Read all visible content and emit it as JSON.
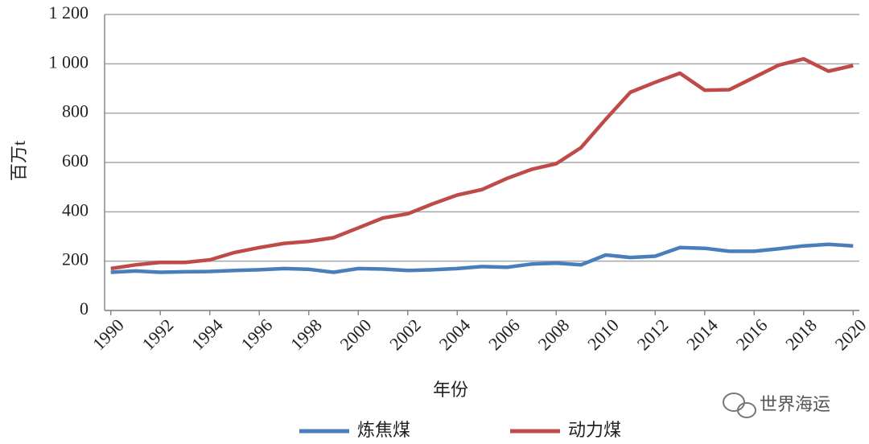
{
  "chart_data": {
    "type": "line",
    "x": [
      1990,
      1991,
      1992,
      1993,
      1994,
      1995,
      1996,
      1997,
      1998,
      1999,
      2000,
      2001,
      2002,
      2003,
      2004,
      2005,
      2006,
      2007,
      2008,
      2009,
      2010,
      2011,
      2012,
      2013,
      2014,
      2015,
      2016,
      2017,
      2018,
      2019,
      2020
    ],
    "series": [
      {
        "name": "炼焦煤",
        "color": "#4a7ebb",
        "values": [
          155,
          160,
          155,
          157,
          158,
          162,
          165,
          170,
          167,
          155,
          170,
          168,
          162,
          165,
          170,
          178,
          175,
          188,
          192,
          185,
          225,
          215,
          220,
          255,
          252,
          240,
          240,
          250,
          262,
          268,
          262
        ]
      },
      {
        "name": "动力煤",
        "color": "#be4b48",
        "values": [
          170,
          185,
          195,
          195,
          205,
          235,
          255,
          272,
          280,
          295,
          335,
          375,
          392,
          432,
          468,
          490,
          535,
          572,
          595,
          660,
          775,
          885,
          925,
          962,
          893,
          895,
          945,
          995,
          1020,
          970,
          993
        ]
      }
    ],
    "xlabel": "年份",
    "ylabel": "百万t",
    "xlim": [
      1989.75,
      2020.25
    ],
    "ylim": [
      0,
      1200
    ],
    "xticks": [
      1990,
      1992,
      1994,
      1996,
      1998,
      2000,
      2002,
      2004,
      2006,
      2008,
      2010,
      2012,
      2014,
      2016,
      2018,
      2020
    ],
    "yticks": [
      0,
      200,
      400,
      600,
      800,
      {
        "value": 1000,
        "label": "1 000"
      },
      {
        "value": 1200,
        "label": "1 200"
      }
    ],
    "grid": true,
    "legend": "bottom"
  },
  "watermark": "世界海运"
}
